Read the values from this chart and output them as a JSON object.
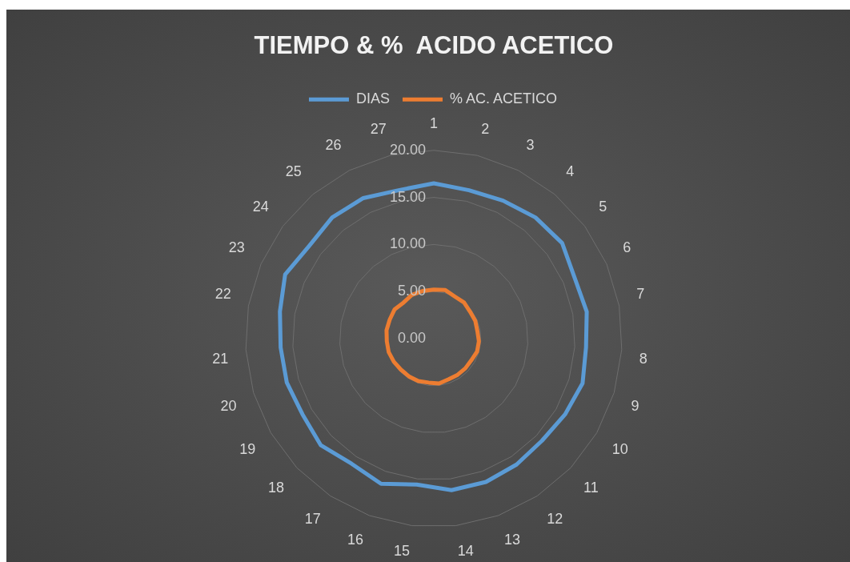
{
  "chart_data": {
    "type": "radar",
    "title": "TIEMPO & %  ACIDO ACETICO",
    "categories": [
      "1",
      "2",
      "3",
      "4",
      "5",
      "6",
      "7",
      "8",
      "9",
      "10",
      "11",
      "12",
      "13",
      "14",
      "15",
      "16",
      "17",
      "18",
      "19",
      "20",
      "21",
      "22",
      "23",
      "24",
      "25",
      "26",
      "27"
    ],
    "series": [
      {
        "name": "DIAS",
        "color": "#5b9bd5",
        "values": [
          16.5,
          16.2,
          16.4,
          16.8,
          17.0,
          16.3,
          16.5,
          16.2,
          16.5,
          16.1,
          15.8,
          16.0,
          16.2,
          16.2,
          15.6,
          16.4,
          15.9,
          16.5,
          16.1,
          16.3,
          16.3,
          16.6,
          17.2,
          16.5,
          16.8,
          16.7,
          16.2
        ]
      },
      {
        "name": "% AC. ACETICO",
        "color": "#ed7d31",
        "values": [
          5.2,
          5.3,
          5.0,
          5.0,
          4.8,
          4.8,
          4.7,
          4.8,
          4.8,
          4.6,
          4.6,
          4.6,
          4.6,
          4.8,
          4.7,
          4.8,
          4.8,
          4.8,
          4.9,
          5.0,
          5.0,
          5.1,
          5.1,
          5.2,
          5.0,
          5.2,
          5.2
        ]
      }
    ],
    "ylim": [
      0,
      20
    ],
    "yticks": [
      {
        "value": 0,
        "label": "0.00"
      },
      {
        "value": 5,
        "label": "5.00"
      },
      {
        "value": 10,
        "label": "10.00"
      },
      {
        "value": 15,
        "label": "15.00"
      },
      {
        "value": 20,
        "label": "20.00"
      }
    ],
    "grid": true,
    "legend": "top",
    "marker": "none"
  }
}
